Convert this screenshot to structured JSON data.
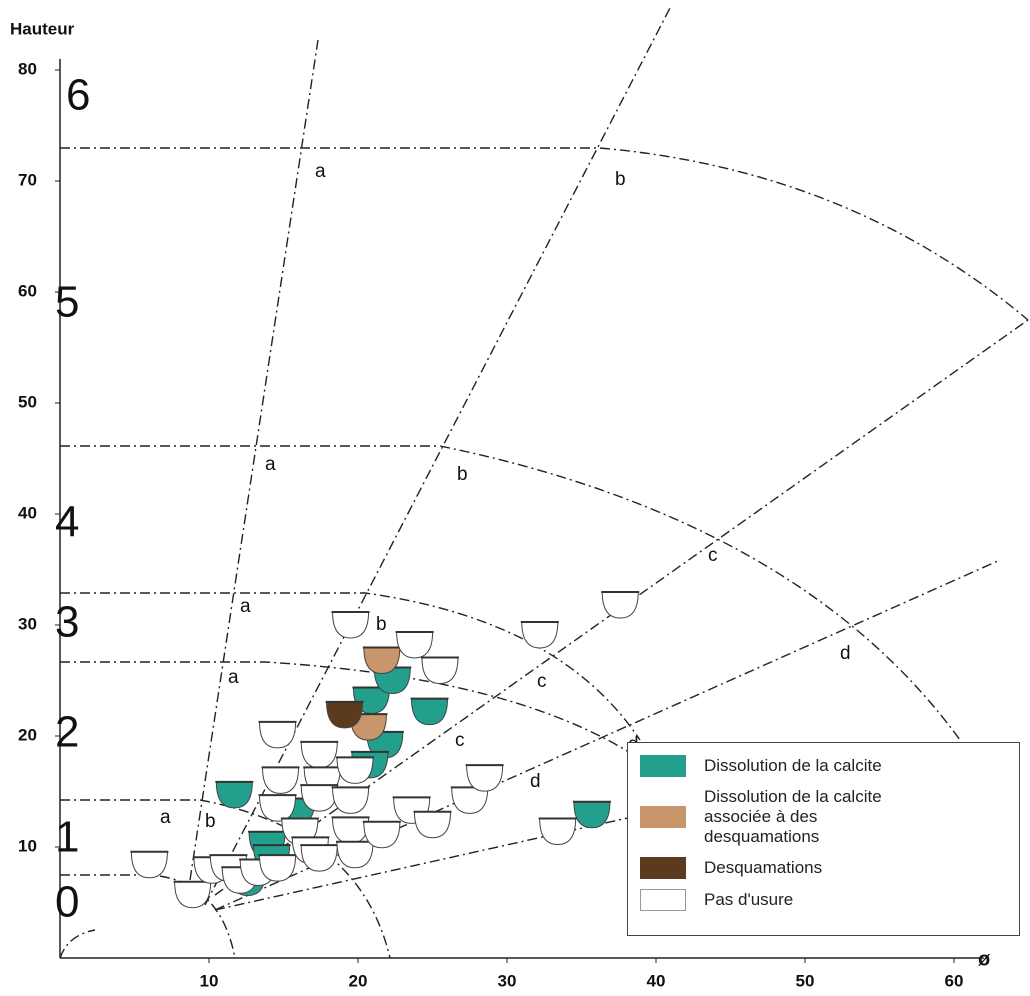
{
  "chart_data": {
    "type": "scatter",
    "y_label": "Hauteur",
    "x_label": "ø",
    "xlim": [
      0,
      62
    ],
    "ylim": [
      0,
      81
    ],
    "xticks": [
      10,
      20,
      30,
      40,
      50,
      60
    ],
    "yticks": [
      10,
      20,
      30,
      40,
      50,
      60,
      70,
      80
    ],
    "zones": [
      0,
      1,
      2,
      3,
      4,
      5,
      6
    ],
    "ray_labels": [
      "a",
      "b",
      "c",
      "d"
    ],
    "series": [
      {
        "name": "Dissolution de la calcite",
        "color": "#23a08d",
        "x": [
          11.7,
          15.9,
          13.9,
          14.2,
          12.6,
          20.9,
          22.3,
          24.8,
          21.8,
          20.8,
          35.7
        ],
        "values": [
          14.7,
          13.2,
          10.2,
          9.0,
          6.8,
          23.2,
          25.0,
          22.2,
          19.2,
          17.4,
          12.9
        ]
      },
      {
        "name": "Dissolution de la calcite associée à des desquamations",
        "color": "#c9956a",
        "x": [
          21.6,
          20.7
        ],
        "values": [
          26.8,
          20.8
        ]
      },
      {
        "name": "Desquamations",
        "color": "#5b3a1d",
        "x": [
          19.1
        ],
        "values": [
          21.9
        ]
      },
      {
        "name": "Pas d'usure",
        "color": "#ffffff",
        "x": [
          6.0,
          8.9,
          10.2,
          11.3,
          12.1,
          13.3,
          14.6,
          14.6,
          14.8,
          14.6,
          16.1,
          16.8,
          17.4,
          17.4,
          17.6,
          17.4,
          19.8,
          19.5,
          19.5,
          19.8,
          19.5,
          23.8,
          25.5,
          21.6,
          23.6,
          25.0,
          27.5,
          28.5,
          32.2,
          37.6,
          33.4
        ],
        "values": [
          8.4,
          5.7,
          7.9,
          8.1,
          7.0,
          7.7,
          8.1,
          20.1,
          16.0,
          13.5,
          11.4,
          9.7,
          9.0,
          18.3,
          16.0,
          14.4,
          16.9,
          14.2,
          11.5,
          9.3,
          30.0,
          28.2,
          25.9,
          11.1,
          13.3,
          12.0,
          14.2,
          16.2,
          29.1,
          31.8,
          11.4
        ]
      }
    ]
  }
}
